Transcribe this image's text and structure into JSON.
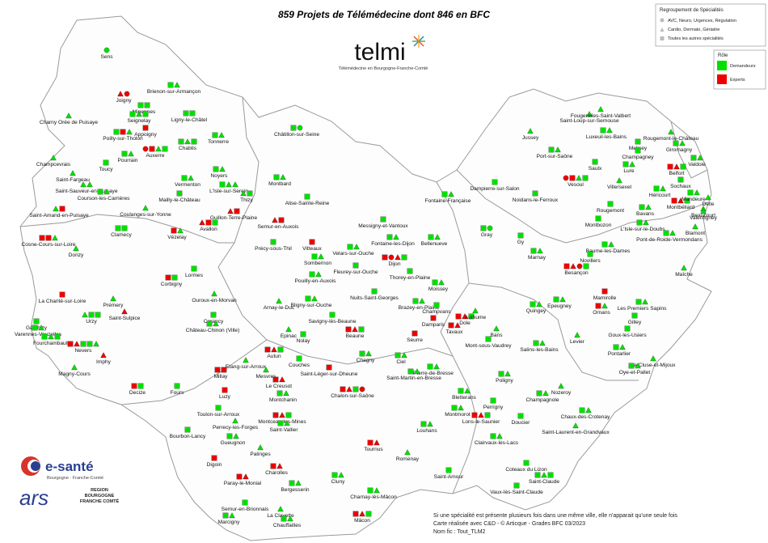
{
  "header": {
    "title": "859 Projets de Télémédecine dont 846 en BFC",
    "logo": "telmi",
    "logo_subtitle": "Télémédecine en Bourgogne-Franche-Comté"
  },
  "legend_groups": {
    "title": "Regroupement de Spécialités",
    "items": [
      "AVC, Neuro, Urgences, Régulation",
      "Cardio, Dermato, Gériatrie",
      "Toutes les autres spécialités"
    ]
  },
  "legend_roles": {
    "title": "Rôle",
    "items": [
      "Demandeurs",
      "Experts"
    ]
  },
  "towns": [
    "Sens",
    "Joigny",
    "Brienon-sur-Armançon",
    "Migennes",
    "Seignelay",
    "Ligny-le-Châtel",
    "Charny Orée de Puisaye",
    "Poilly-sur-Tholon",
    "Appoigny",
    "Auxerre",
    "Chablis",
    "Tonnerre",
    "Pourrain",
    "Toucy",
    "Champcevrais",
    "Saint-Fargeau",
    "Vermenton",
    "Noyers",
    "Saint-Sauveur-en-Puisaye",
    "Courson-les-Carrières",
    "L'Isle-sur-Serein",
    "Mailly-le-Château",
    "Thizy",
    "Saint-Amand-en-Puisaye",
    "Coulanges-sur-Yonne",
    "Guillon-Terre-Plaine",
    "Avallon",
    "Clamecy",
    "Vézelay",
    "Cosne-Cours-sur-Loire",
    "Donzy",
    "Lormes",
    "Corbigny",
    "Prémery",
    "La Charité-sur-Loire",
    "Saint-Sulpice",
    "Urzy",
    "Garchizy",
    "Varennes-Vauzelles",
    "Fourchambault",
    "Nevers",
    "Imphy",
    "Magny-Cours",
    "Decize",
    "Fours",
    "Châtillon-sur-Seine",
    "Montbard",
    "Alise-Sainte-Reine",
    "Semur-en-Auxois",
    "Précy-sous-Thil",
    "Vitteaux",
    "Sombernon",
    "Pouilly-en-Auxois",
    "Ouroux-en-Morvan",
    "Corancy",
    "Château-Chinon (Ville)",
    "Arnay-le-Duc",
    "Bligny-sur-Ouche",
    "Nuits-Saint-Georges",
    "Savigny-lès-Beaune",
    "Beaune",
    "Epinac",
    "Nolay",
    "Autun",
    "Velars-sur-Ouche",
    "Fontaine-les-Dijon",
    "Dijon",
    "Fleurey-sur-Ouche",
    "Thorey-en-Plaine",
    "Messigny-et-Vantoux",
    "Bellenueve",
    "Fontaine-Française",
    "Brazey-en-Plaine",
    "Dampierre-sur-Salon",
    "Seurre",
    "Chagny",
    "Couches",
    "Etang-sur-Arroux",
    "Millay",
    "Luzy",
    "Mesvres",
    "Le Creusot",
    "Saint-Léger-sur-Dheune",
    "Montchanin",
    "Chalon-sur-Saône",
    "Ciel",
    "Pierre-de-Bresse",
    "Saint-Martin-en-Bresse",
    "Louhans",
    "Toulon-sur-Arroux",
    "Montceau-les-Mines",
    "Perrecy-les-Forges",
    "Saint-Vallier",
    "Bourbon-Lancy",
    "Gueugnon",
    "Tournus",
    "Digoin",
    "Paray-le-Monial",
    "Palinges",
    "Charolles",
    "Cluny",
    "Bergesserin",
    "Mâcon",
    "La Clayette",
    "Semur-en-Brionnais",
    "Marcigny",
    "Chauffailles",
    "Charnay-lès-Mâcon",
    "Romenay",
    "Saint-Amour",
    "Clairvaux-les-Lacs",
    "Lons-le-Saunier",
    "Montmorot",
    "Perrigny",
    "Bletterans",
    "Poligny",
    "Salins-les-Bains",
    "Mont-sous-Vaudrey",
    "Bans",
    "Tavaux",
    "Dole",
    "Damparis",
    "Champvans",
    "Authume",
    "Moissey",
    "Gray",
    "Gy",
    "Marnay",
    "Jussey",
    "Vesoul",
    "Saint-Loup-sur-Semouse",
    "Fougerolles-Saint-Valbert",
    "Luxeuil-les-Bains",
    "Port-sur-Saône",
    "Saulx",
    "Lure",
    "Melisey",
    "Champagney",
    "Villersexel",
    "Héricourt",
    "Belfort",
    "Delle",
    "Montbéliard",
    "Rougemont",
    "Montbozon",
    "L'Isle-sur-le-Doubs",
    "Pont-de-Roide-Vermondans",
    "Baume-les-Dames",
    "Besançon",
    "Novillers",
    "Ornans",
    "Pontarlier",
    "Maîche",
    "Les Premiers Sapins",
    "Gilley",
    "Goux-les-Usiers",
    "La Cluse-et-Mijoux",
    "Oye-et-Pallet",
    "Levier",
    "Nozeroy",
    "Champagnole",
    "Chaux-des-Crotenay",
    "Saint-Laurent-en-Grandvaux",
    "Doucier",
    "Coteaux du Lizon",
    "Saint-Claude",
    "Vaux-lès-Saint-Claude",
    "Quingey",
    "Epeugney",
    "Mamirolle",
    "Noidans-le-Ferroux",
    "Rougemont-le-Château",
    "Giromagny",
    "Valdoie",
    "Beaucourt",
    "Mandeure",
    "Valentigney",
    "Blamont",
    "Bavans",
    "Sochaux"
  ],
  "notes": [
    "Si une spécialité est présente plusieurs fois dans une même ville, elle n'apparait qu'une seule fois",
    "Carte réalisée avec C&D - © Articque - Grades BFC 03/2023",
    "Nom fic : Tout_TLM2"
  ],
  "logos": {
    "esante": "e-santé",
    "esante_sub": "Bourgogne · Franche-Comté",
    "ars": "ars",
    "region": "RÉGION BOURGOGNE FRANCHE COMTÉ"
  }
}
